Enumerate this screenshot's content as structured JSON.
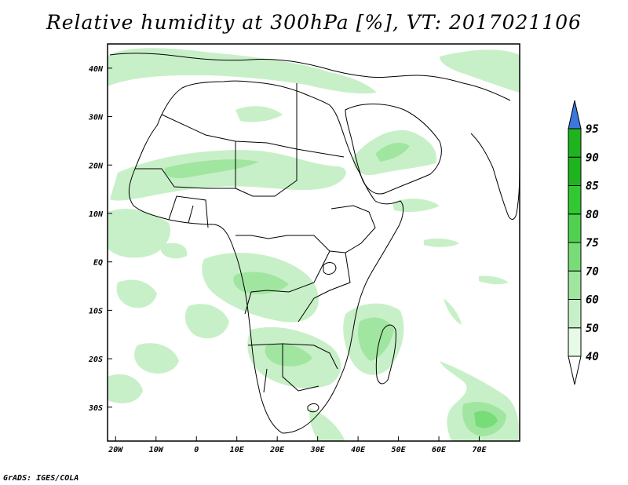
{
  "title": "Relative humidity at 300hPa [%], VT: 2017021106",
  "credit": "GrADS: IGES/COLA",
  "map": {
    "lon_range": [
      -22,
      80
    ],
    "lat_range": [
      -37,
      45
    ],
    "x_ticks": [
      "20W",
      "10W",
      "0",
      "10E",
      "20E",
      "30E",
      "40E",
      "50E",
      "60E",
      "70E"
    ],
    "x_tick_lons": [
      -20,
      -10,
      0,
      10,
      20,
      30,
      40,
      50,
      60,
      70
    ],
    "y_ticks": [
      "40N",
      "30N",
      "20N",
      "10N",
      "EQ",
      "10S",
      "20S",
      "30S"
    ],
    "y_tick_lats": [
      40,
      30,
      20,
      10,
      0,
      -10,
      -20,
      -30
    ]
  },
  "colorbar": {
    "labels": [
      "40",
      "50",
      "60",
      "70",
      "75",
      "80",
      "85",
      "90",
      "95"
    ],
    "colors": [
      "#ffffff",
      "#e6fae6",
      "#c8f0c8",
      "#a0e6a0",
      "#78dc78",
      "#50d250",
      "#32c832",
      "#1eb41e",
      "#3c78dc"
    ]
  },
  "humidity_colors": {
    "light": "#c8f0c8",
    "medium": "#a0e6a0",
    "strong": "#78dc78"
  }
}
